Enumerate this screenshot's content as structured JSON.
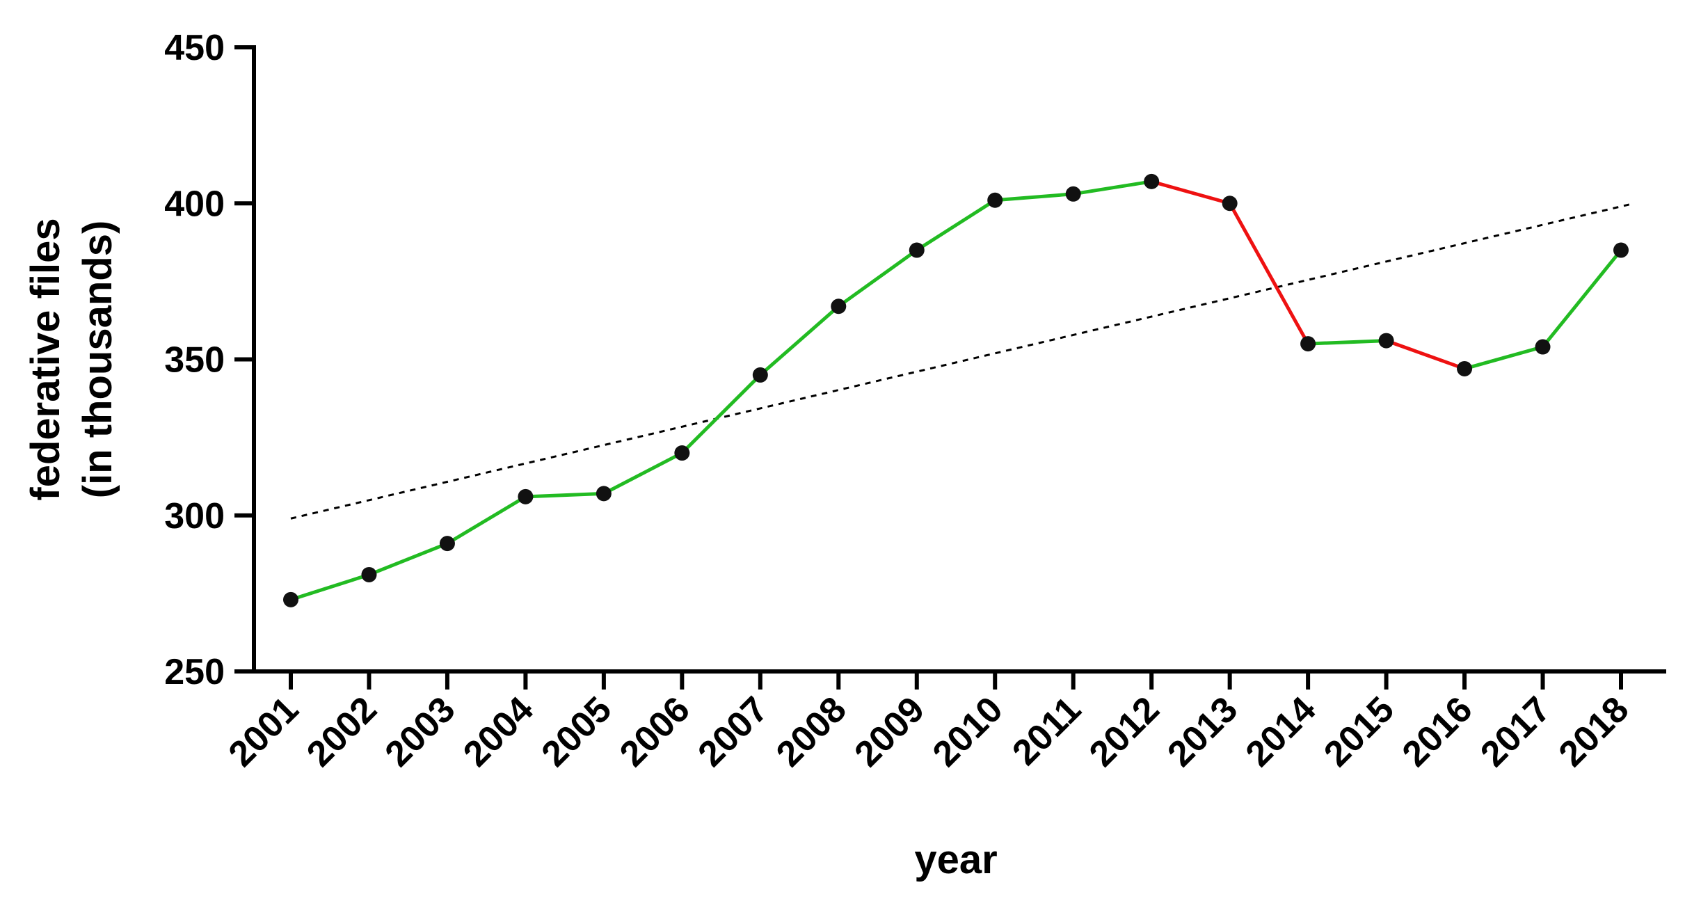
{
  "chart_data": {
    "type": "line",
    "xlabel": "year",
    "ylabel_lines": [
      "federative files",
      "(in thousands)"
    ],
    "ylim": [
      250,
      450
    ],
    "yticks": [
      "250",
      "300",
      "350",
      "400",
      "450"
    ],
    "categories": [
      "2001",
      "2002",
      "2003",
      "2004",
      "2005",
      "2006",
      "2007",
      "2008",
      "2009",
      "2010",
      "2011",
      "2012",
      "2013",
      "2014",
      "2015",
      "2016",
      "2017",
      "2018"
    ],
    "series": [
      {
        "values": [
          273,
          281,
          291,
          306,
          307,
          320,
          345,
          367,
          385,
          401,
          403,
          407,
          400,
          355,
          356,
          347,
          354,
          385
        ],
        "increase_color": "#22bb22",
        "decrease_color": "#ee1111",
        "marker_color": "#111111"
      }
    ],
    "trendline": {
      "style": "dashed",
      "start": 299,
      "end": 399,
      "color": "#000000"
    },
    "grid": false,
    "legend": "none"
  }
}
